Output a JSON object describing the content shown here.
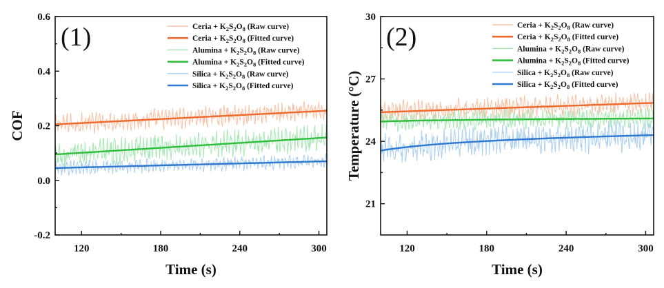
{
  "colors": {
    "ceria_raw": "#f6b797",
    "ceria_fit": "#ee6a2c",
    "alumina_raw": "#98e4a8",
    "alumina_fit": "#2fbd3c",
    "silica_raw": "#9cc8ef",
    "silica_fit": "#2f78cf"
  },
  "chart_data": [
    {
      "type": "line",
      "panel_label": "(1)",
      "xlabel": "Time (s)",
      "ylabel": "COF",
      "xlim": [
        100,
        306
      ],
      "ylim": [
        -0.2,
        0.6
      ],
      "xticks": [
        120,
        180,
        240,
        300
      ],
      "yticks": [
        -0.2,
        0.0,
        0.2,
        0.4,
        0.6
      ],
      "xtick_labels": [
        "120",
        "180",
        "240",
        "300"
      ],
      "ytick_labels": [
        "-0.2",
        "0.0",
        "0.2",
        "0.4",
        "0.6"
      ],
      "legend_position": "top-right",
      "series": [
        {
          "name": "Ceria + K2S2O8 (Raw curve)",
          "legend_pre": "Ceria + K",
          "legend_suffix": " (Raw curve)",
          "color_key": "ceria_raw",
          "kind": "raw",
          "x": [
            100,
            306
          ],
          "y": [
            0.205,
            0.255
          ],
          "noise": 0.035
        },
        {
          "name": "Ceria + K2S2O8 (Fitted curve)",
          "legend_pre": "Ceria + K",
          "legend_suffix": " (Fitted curve)",
          "color_key": "ceria_fit",
          "kind": "fit",
          "x": [
            100,
            306
          ],
          "y": [
            0.205,
            0.255
          ]
        },
        {
          "name": "Alumina + K2S2O8 (Raw curve)",
          "legend_pre": "Alumina + K",
          "legend_suffix": " (Raw curve)",
          "color_key": "alumina_raw",
          "kind": "raw",
          "x": [
            100,
            306
          ],
          "y": [
            0.095,
            0.157
          ],
          "noise": 0.045
        },
        {
          "name": "Alumina + K2S2O8 (Fitted curve)",
          "legend_pre": "Alumina + K",
          "legend_suffix": " (Fitted curve)",
          "color_key": "alumina_fit",
          "kind": "fit",
          "x": [
            100,
            306
          ],
          "y": [
            0.095,
            0.157
          ]
        },
        {
          "name": "Silica + K2S2O8 (Raw curve)",
          "legend_pre": "Silica + K",
          "legend_suffix": " (Raw curve)",
          "color_key": "silica_raw",
          "kind": "raw",
          "x": [
            100,
            306
          ],
          "y": [
            0.045,
            0.07
          ],
          "noise": 0.025
        },
        {
          "name": "Silica + K2S2O8 (Fitted curve)",
          "legend_pre": "Silica + K",
          "legend_suffix": " (Fitted curve)",
          "color_key": "silica_fit",
          "kind": "fit",
          "x": [
            100,
            306
          ],
          "y": [
            0.045,
            0.07
          ]
        }
      ]
    },
    {
      "type": "line",
      "panel_label": "(2)",
      "xlabel": "Time (s)",
      "ylabel": "Temperature (°C)",
      "xlim": [
        100,
        306
      ],
      "ylim": [
        19.5,
        30
      ],
      "xticks": [
        120,
        180,
        240,
        300
      ],
      "yticks": [
        21,
        24,
        27,
        30
      ],
      "xtick_labels": [
        "120",
        "180",
        "240",
        "300"
      ],
      "ytick_labels": [
        "21",
        "24",
        "27",
        "30"
      ],
      "legend_position": "top-right",
      "series": [
        {
          "name": "Ceria + K2S2O8 (Raw curve)",
          "legend_pre": "Ceria + K",
          "legend_suffix": " (Raw curve)",
          "color_key": "ceria_raw",
          "kind": "raw",
          "x": [
            100,
            306
          ],
          "y": [
            25.4,
            25.85
          ],
          "noise": 0.5,
          "shape": "linear"
        },
        {
          "name": "Ceria + K2S2O8 (Fitted curve)",
          "legend_pre": "Ceria + K",
          "legend_suffix": " (Fitted curve)",
          "color_key": "ceria_fit",
          "kind": "fit",
          "x": [
            100,
            306
          ],
          "y": [
            25.4,
            25.85
          ],
          "shape": "linear"
        },
        {
          "name": "Alumina + K2S2O8 (Raw curve)",
          "legend_pre": "Alumina + K",
          "legend_suffix": " (Raw curve)",
          "color_key": "alumina_raw",
          "kind": "raw",
          "x": [
            100,
            306
          ],
          "y": [
            24.95,
            25.1
          ],
          "noise": 0.45,
          "shape": "log"
        },
        {
          "name": "Alumina + K2S2O8 (Fitted curve)",
          "legend_pre": "Alumina + K",
          "legend_suffix": " (Fitted curve)",
          "color_key": "alumina_fit",
          "kind": "fit",
          "x": [
            100,
            306
          ],
          "y": [
            24.95,
            25.1
          ],
          "shape": "log"
        },
        {
          "name": "Silica + K2S2O8 (Raw curve)",
          "legend_pre": "Silica + K",
          "legend_suffix": " (Raw curve)",
          "color_key": "silica_raw",
          "kind": "raw",
          "x": [
            100,
            306
          ],
          "y": [
            23.55,
            24.3
          ],
          "noise": 0.7,
          "shape": "log"
        },
        {
          "name": "Silica + K2S2O8 (Fitted curve)",
          "legend_pre": "Silica + K",
          "legend_suffix": " (Fitted curve)",
          "color_key": "silica_fit",
          "kind": "fit",
          "x": [
            100,
            306
          ],
          "y": [
            23.55,
            24.3
          ],
          "shape": "log"
        }
      ]
    }
  ]
}
